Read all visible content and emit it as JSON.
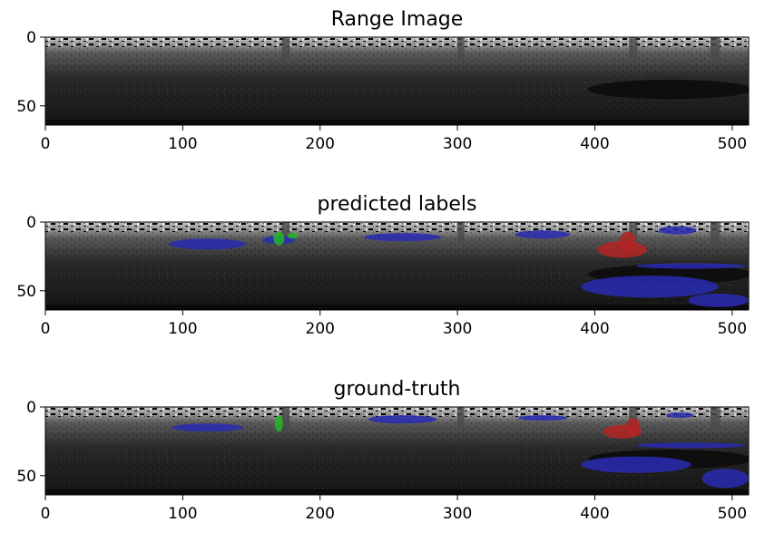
{
  "chart_data": [
    {
      "type": "heatmap",
      "title": "Range Image",
      "x_range": [
        0,
        512
      ],
      "y_range": [
        0,
        64
      ],
      "xticks": [
        0,
        100,
        200,
        300,
        400,
        500
      ],
      "yticks": [
        0,
        50
      ],
      "xtick_labels": [
        "0",
        "100",
        "200",
        "300",
        "400",
        "500"
      ],
      "ytick_labels": [
        "0",
        "50"
      ],
      "overlays": []
    },
    {
      "type": "heatmap",
      "title": "predicted labels",
      "x_range": [
        0,
        512
      ],
      "y_range": [
        0,
        64
      ],
      "xticks": [
        0,
        100,
        200,
        300,
        400,
        500
      ],
      "yticks": [
        0,
        50
      ],
      "xtick_labels": [
        "0",
        "100",
        "200",
        "300",
        "400",
        "500"
      ],
      "ytick_labels": [
        "0",
        "50"
      ],
      "overlays": [
        {
          "label": "blue",
          "color": "#2a2ab4",
          "cx": 118,
          "cy": 16,
          "rx": 28,
          "ry": 4
        },
        {
          "label": "blue",
          "color": "#2a2ab4",
          "cx": 170,
          "cy": 13,
          "rx": 12,
          "ry": 3
        },
        {
          "label": "blue",
          "color": "#2a2ab4",
          "cx": 260,
          "cy": 11,
          "rx": 28,
          "ry": 3
        },
        {
          "label": "blue",
          "color": "#2a2ab4",
          "cx": 362,
          "cy": 9,
          "rx": 20,
          "ry": 3
        },
        {
          "label": "blue",
          "color": "#2a2ab4",
          "cx": 460,
          "cy": 6,
          "rx": 14,
          "ry": 3
        },
        {
          "label": "blue",
          "color": "#2a2ab4",
          "cx": 440,
          "cy": 47,
          "rx": 50,
          "ry": 8
        },
        {
          "label": "blue",
          "color": "#2a2ab4",
          "cx": 490,
          "cy": 57,
          "rx": 22,
          "ry": 5
        },
        {
          "label": "blue",
          "color": "#2a2ab4",
          "cx": 470,
          "cy": 32,
          "rx": 40,
          "ry": 2
        },
        {
          "label": "green",
          "color": "#24b424",
          "cx": 170,
          "cy": 12,
          "rx": 4,
          "ry": 5
        },
        {
          "label": "green",
          "color": "#24b424",
          "cx": 180,
          "cy": 10,
          "rx": 4,
          "ry": 2
        },
        {
          "label": "red",
          "color": "#b42424",
          "cx": 420,
          "cy": 20,
          "rx": 18,
          "ry": 6
        },
        {
          "label": "red",
          "color": "#b42424",
          "cx": 424,
          "cy": 14,
          "rx": 6,
          "ry": 7
        }
      ]
    },
    {
      "type": "heatmap",
      "title": "ground-truth",
      "x_range": [
        0,
        512
      ],
      "y_range": [
        0,
        64
      ],
      "xticks": [
        0,
        100,
        200,
        300,
        400,
        500
      ],
      "yticks": [
        0,
        50
      ],
      "xtick_labels": [
        "0",
        "100",
        "200",
        "300",
        "400",
        "500"
      ],
      "ytick_labels": [
        "0",
        "50"
      ],
      "overlays": [
        {
          "label": "blue",
          "color": "#2a2ab4",
          "cx": 118,
          "cy": 15,
          "rx": 26,
          "ry": 3
        },
        {
          "label": "blue",
          "color": "#2a2ab4",
          "cx": 260,
          "cy": 9,
          "rx": 25,
          "ry": 3
        },
        {
          "label": "blue",
          "color": "#2a2ab4",
          "cx": 362,
          "cy": 8,
          "rx": 18,
          "ry": 2
        },
        {
          "label": "blue",
          "color": "#2a2ab4",
          "cx": 462,
          "cy": 6,
          "rx": 10,
          "ry": 2
        },
        {
          "label": "blue",
          "color": "#2a2ab4",
          "cx": 430,
          "cy": 42,
          "rx": 40,
          "ry": 6
        },
        {
          "label": "blue",
          "color": "#2a2ab4",
          "cx": 495,
          "cy": 52,
          "rx": 17,
          "ry": 7
        },
        {
          "label": "blue",
          "color": "#2a2ab4",
          "cx": 470,
          "cy": 28,
          "rx": 40,
          "ry": 2
        },
        {
          "label": "green",
          "color": "#24b424",
          "cx": 170,
          "cy": 12,
          "rx": 3,
          "ry": 6
        },
        {
          "label": "red",
          "color": "#b42424",
          "cx": 420,
          "cy": 18,
          "rx": 14,
          "ry": 5
        },
        {
          "label": "red",
          "color": "#b42424",
          "cx": 428,
          "cy": 14,
          "rx": 5,
          "ry": 6
        }
      ]
    }
  ]
}
